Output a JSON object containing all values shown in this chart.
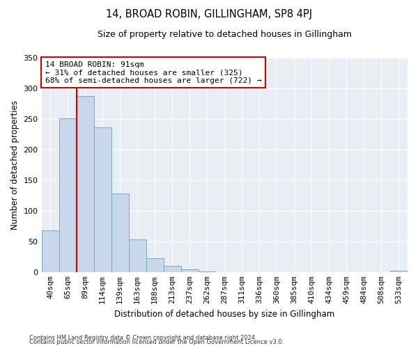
{
  "title": "14, BROAD ROBIN, GILLINGHAM, SP8 4PJ",
  "subtitle": "Size of property relative to detached houses in Gillingham",
  "xlabel": "Distribution of detached houses by size in Gillingham",
  "ylabel": "Number of detached properties",
  "bar_labels": [
    "40sqm",
    "65sqm",
    "89sqm",
    "114sqm",
    "139sqm",
    "163sqm",
    "188sqm",
    "213sqm",
    "237sqm",
    "262sqm",
    "287sqm",
    "311sqm",
    "336sqm",
    "360sqm",
    "385sqm",
    "410sqm",
    "434sqm",
    "459sqm",
    "484sqm",
    "508sqm",
    "533sqm"
  ],
  "bar_values": [
    68,
    251,
    288,
    236,
    128,
    53,
    23,
    10,
    4,
    1,
    0,
    0,
    0,
    0,
    0,
    0,
    0,
    0,
    0,
    0,
    2
  ],
  "bar_color": "#c8d8ea",
  "bar_edge_color": "#7aaabf",
  "vline_index": 2,
  "vline_color": "#cc0000",
  "annotation_line1": "14 BROAD ROBIN: 91sqm",
  "annotation_line2": "← 31% of detached houses are smaller (325)",
  "annotation_line3": "68% of semi-detached houses are larger (722) →",
  "annotation_box_color": "#ffffff",
  "annotation_edge_color": "#cc0000",
  "ylim": [
    0,
    350
  ],
  "yticks": [
    0,
    50,
    100,
    150,
    200,
    250,
    300,
    350
  ],
  "bg_color": "#e8eef4",
  "grid_color": "#ffffff",
  "footnote1": "Contains HM Land Registry data © Crown copyright and database right 2024.",
  "footnote2": "Contains public sector information licensed under the Open Government Licence v3.0."
}
